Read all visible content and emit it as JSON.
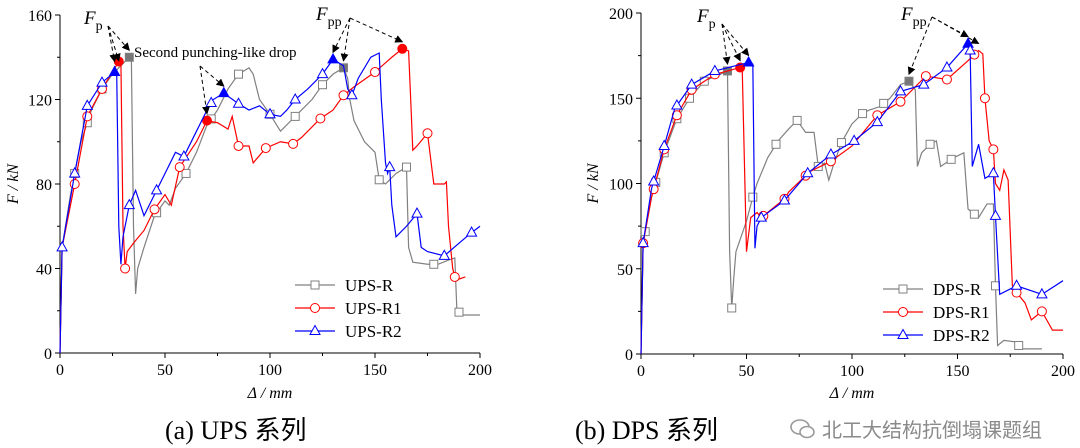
{
  "chart_data": [
    {
      "type": "line",
      "caption": "(a) UPS 系列",
      "xlabel": "Δ / mm",
      "ylabel": "F / kN",
      "xlim": [
        0,
        200
      ],
      "ylim": [
        0,
        160
      ],
      "xticks": [
        "0",
        "50",
        "100",
        "150",
        "200"
      ],
      "yticks": [
        "0",
        "40",
        "80",
        "120",
        "160"
      ],
      "grid": false,
      "legend_position": "bottom-right",
      "annotations": {
        "fp": "F",
        "fp_sub": "p",
        "fpp": "F",
        "fpp_sub": "pp",
        "drop": "Second punching-like drop"
      },
      "series": [
        {
          "name": "UPS-R",
          "color": "#808080",
          "marker": "square",
          "x": [
            0,
            1,
            5,
            10,
            15,
            20,
            25,
            33,
            34,
            35,
            36,
            37,
            40,
            45,
            50,
            52,
            55,
            60,
            65,
            70,
            75,
            80,
            85,
            90,
            92,
            95,
            100,
            105,
            110,
            115,
            120,
            125,
            130,
            135,
            137,
            138,
            140,
            145,
            150,
            152,
            155,
            160,
            165,
            166,
            168,
            175,
            180,
            185,
            188,
            189,
            192,
            200
          ],
          "y": [
            0,
            50,
            75,
            100,
            115,
            125,
            132,
            140,
            138,
            60,
            28,
            40,
            50,
            65,
            72,
            70,
            78,
            85,
            95,
            108,
            115,
            125,
            132,
            135,
            132,
            120,
            113,
            105,
            110,
            115,
            120,
            127,
            132,
            135,
            130,
            120,
            110,
            100,
            95,
            82,
            80,
            85,
            88,
            50,
            43,
            42,
            42,
            44,
            45,
            20,
            18,
            18
          ],
          "markers": [
            7,
            13,
            20,
            33,
            46,
            60,
            72,
            85,
            100,
            112,
            125,
            135,
            152,
            165,
            178,
            190
          ],
          "filled": [
            33,
            135
          ]
        },
        {
          "name": "UPS-R1",
          "color": "#ff0000",
          "marker": "circle",
          "x": [
            0,
            1,
            7,
            13,
            20,
            25,
            28,
            29,
            30,
            31,
            32,
            35,
            40,
            45,
            50,
            53,
            57,
            65,
            70,
            75,
            80,
            82,
            85,
            90,
            92,
            98,
            105,
            111,
            115,
            124,
            130,
            135,
            140,
            150,
            158,
            163,
            166,
            167,
            168,
            170,
            175,
            176,
            178,
            183,
            184,
            185,
            187,
            188,
            190,
            193
          ],
          "y": [
            0,
            50,
            80,
            112,
            125,
            133,
            138,
            138,
            60,
            40,
            48,
            52,
            58,
            68,
            75,
            70,
            88,
            100,
            110,
            109,
            106,
            112,
            98,
            98,
            90,
            97,
            100,
            99,
            102,
            111,
            115,
            122,
            126,
            133,
            140,
            144,
            143,
            120,
            96,
            98,
            104,
            96,
            80,
            80,
            81,
            60,
            40,
            36,
            35,
            36
          ],
          "markers": [
            7,
            13,
            20,
            28,
            31,
            45,
            57,
            70,
            85,
            98,
            111,
            124,
            135,
            150,
            163,
            175,
            188
          ],
          "filled": [
            28,
            70,
            163
          ]
        },
        {
          "name": "UPS-R2",
          "color": "#0000ff",
          "marker": "triangle",
          "x": [
            0,
            1,
            7,
            13,
            20,
            26,
            27,
            28,
            29,
            30,
            33,
            36,
            40,
            46,
            55,
            59,
            65,
            70,
            73,
            78,
            85,
            90,
            95,
            100,
            105,
            108,
            112,
            118,
            125,
            130,
            135,
            137,
            139,
            142,
            148,
            152,
            153,
            155,
            156,
            157,
            158,
            160,
            165,
            170,
            172,
            175,
            183,
            190,
            196,
            200
          ],
          "y": [
            0,
            50,
            85,
            117,
            128,
            133,
            133,
            60,
            42,
            55,
            70,
            77,
            65,
            77,
            95,
            93,
            105,
            115,
            120,
            123,
            118,
            115,
            117,
            113,
            112,
            115,
            120,
            125,
            132,
            139,
            136,
            125,
            122,
            130,
            140,
            142,
            120,
            90,
            85,
            88,
            70,
            55,
            60,
            66,
            50,
            48,
            46,
            52,
            57,
            60
          ],
          "markers": [
            1,
            7,
            13,
            20,
            26,
            33,
            46,
            59,
            72,
            78,
            85,
            100,
            112,
            125,
            130,
            139,
            157,
            170,
            183,
            196
          ],
          "filled": [
            26,
            78,
            130
          ]
        }
      ]
    },
    {
      "type": "line",
      "caption": "(b) DPS 系列",
      "xlabel": "Δ / mm",
      "ylabel": "F / kN",
      "xlim": [
        0,
        200
      ],
      "ylim": [
        0,
        200
      ],
      "xticks": [
        "0",
        "50",
        "100",
        "150",
        "200"
      ],
      "yticks": [
        "0",
        "50",
        "100",
        "150",
        "200"
      ],
      "grid": false,
      "legend_position": "bottom-right",
      "annotations": {
        "fp": "F",
        "fp_sub": "p",
        "fpp": "F",
        "fpp_sub": "pp"
      },
      "series": [
        {
          "name": "DPS-R",
          "color": "#808080",
          "marker": "square",
          "x": [
            0,
            1,
            5,
            11,
            17,
            23,
            30,
            41,
            42,
            43,
            44,
            45,
            50,
            53,
            55,
            60,
            65,
            70,
            74,
            78,
            82,
            84,
            87,
            89,
            91,
            95,
            100,
            105,
            108,
            113,
            118,
            123,
            127,
            130,
            131,
            133,
            137,
            140,
            142,
            148,
            153,
            155,
            160,
            164,
            167,
            168,
            169,
            172,
            178,
            180,
            190
          ],
          "y": [
            0,
            65,
            92,
            118,
            138,
            150,
            160,
            166,
            60,
            27,
            45,
            60,
            78,
            92,
            100,
            115,
            125,
            132,
            137,
            130,
            130,
            110,
            112,
            102,
            110,
            124,
            135,
            141,
            143,
            145,
            150,
            158,
            160,
            155,
            110,
            118,
            123,
            125,
            110,
            115,
            118,
            85,
            80,
            88,
            88,
            40,
            5,
            8,
            7,
            3,
            3
          ],
          "markers": [
            2,
            7,
            11,
            17,
            23,
            30,
            41,
            43,
            53,
            64,
            74,
            84,
            95,
            105,
            115,
            127,
            137,
            147,
            158,
            168,
            179
          ],
          "filled": [
            41,
            127
          ]
        },
        {
          "name": "DPS-R1",
          "color": "#ff0000",
          "marker": "circle",
          "x": [
            0,
            1,
            5,
            11,
            17,
            24,
            35,
            47,
            48,
            50,
            52,
            55,
            57,
            68,
            70,
            80,
            90,
            100,
            112,
            123,
            135,
            145,
            155,
            160,
            162,
            163,
            165,
            167,
            168,
            170,
            172,
            174,
            176,
            178,
            182,
            185,
            190,
            195,
            200
          ],
          "y": [
            0,
            65,
            92,
            120,
            140,
            155,
            164,
            168,
            166,
            60,
            80,
            83,
            80,
            91,
            95,
            107,
            113,
            122,
            140,
            148,
            163,
            161,
            172,
            178,
            176,
            150,
            125,
            120,
            100,
            96,
            108,
            102,
            40,
            36,
            30,
            20,
            25,
            14,
            14
          ],
          "markers": [
            1,
            6,
            11,
            17,
            24,
            35,
            47,
            58,
            68,
            78,
            90,
            112,
            123,
            135,
            145,
            158,
            163,
            167,
            178,
            190
          ],
          "filled": [
            47,
            160
          ]
        },
        {
          "name": "DPS-R2",
          "color": "#0000ff",
          "marker": "triangle",
          "x": [
            0,
            1,
            5,
            11,
            16,
            24,
            35,
            51,
            53,
            54,
            55,
            57,
            68,
            79,
            90,
            101,
            112,
            123,
            134,
            145,
            155,
            156,
            157,
            160,
            163,
            167,
            168,
            170,
            178,
            190,
            200
          ],
          "y": [
            0,
            65,
            97,
            122,
            144,
            158,
            166,
            171,
            170,
            62,
            75,
            80,
            90,
            106,
            117,
            125,
            136,
            154,
            158,
            168,
            182,
            178,
            110,
            123,
            103,
            106,
            81,
            35,
            40,
            35,
            43
          ],
          "markers": [
            1,
            6,
            11,
            17,
            24,
            35,
            51,
            57,
            68,
            79,
            90,
            101,
            112,
            123,
            134,
            145,
            155,
            156,
            167,
            168,
            178,
            190
          ],
          "filled": [
            51,
            155
          ]
        }
      ]
    }
  ],
  "watermark": "北工大结构抗倒塌课题组",
  "watermark_icon": "wechat-icon"
}
